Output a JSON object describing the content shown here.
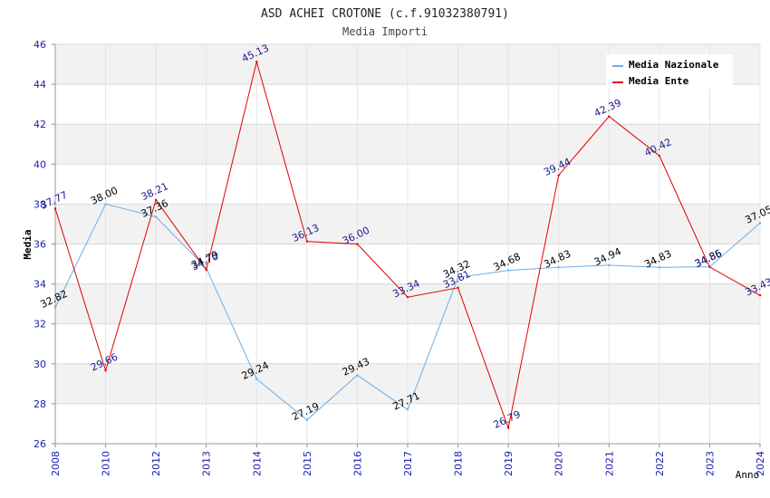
{
  "chart_data": {
    "type": "line",
    "title": "ASD ACHEI CROTONE (c.f.91032380791)",
    "subtitle": "Media Importi",
    "xlabel": "Anno",
    "ylabel": "Media",
    "categories": [
      "2008",
      "2010",
      "2012",
      "2013",
      "2014",
      "2015",
      "2016",
      "2017",
      "2018",
      "2019",
      "2020",
      "2021",
      "2022",
      "2023",
      "2024"
    ],
    "ylim": [
      26,
      46
    ],
    "yticks": [
      26,
      28,
      30,
      32,
      34,
      36,
      38,
      40,
      42,
      44,
      46
    ],
    "grid": true,
    "legend_position": "top-right",
    "series": [
      {
        "name": "Media Nazionale",
        "color": "#6aaee6",
        "label_color": "#000000",
        "values": [
          32.82,
          38.0,
          37.36,
          34.79,
          29.24,
          27.19,
          29.43,
          27.71,
          34.32,
          34.68,
          34.83,
          34.94,
          34.83,
          34.86,
          37.05
        ],
        "labels": [
          "32.82",
          "38.00",
          "37.36",
          "34.79",
          "29.24",
          "27.19",
          "29.43",
          "27.71",
          "34.32",
          "34.68",
          "34.83",
          "34.94",
          "34.83",
          "34.86",
          "37.05"
        ]
      },
      {
        "name": "Media Ente",
        "color": "#e00000",
        "label_color": "#1a1a8c",
        "values": [
          37.77,
          29.66,
          38.21,
          34.7,
          45.13,
          36.13,
          36.0,
          33.34,
          33.81,
          26.79,
          39.44,
          42.39,
          40.42,
          34.85,
          33.43
        ],
        "labels": [
          "37.77",
          "29.66",
          "38.21",
          "34.70",
          "45.13",
          "36.13",
          "36.00",
          "33.34",
          "33.81",
          "26.79",
          "39.44",
          "42.39",
          "40.42",
          "34.85",
          "33.43"
        ]
      }
    ]
  }
}
